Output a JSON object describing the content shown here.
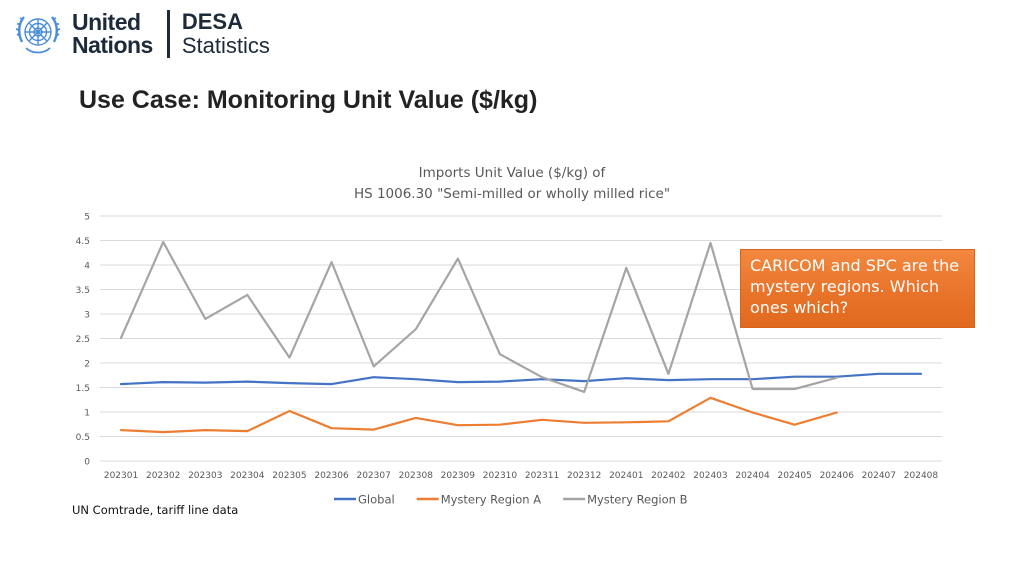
{
  "header": {
    "org_line1": "United",
    "org_line2": "Nations",
    "dept_line1": "DESA",
    "dept_line2": "Statistics"
  },
  "page": {
    "title": "Use Case: Monitoring Unit Value ($/kg)",
    "source_note": "UN Comtrade, tariff line data"
  },
  "callout": {
    "text": "CARICOM and SPC are the mystery regions. Which ones which?"
  },
  "colors": {
    "global": "#4472c4",
    "region_a": "#ed7d31",
    "region_b": "#a5a5a5",
    "callout": "#e8742a"
  },
  "chart_data": {
    "type": "line",
    "title": "Imports Unit Value ($/kg) of",
    "subtitle": "HS 1006.30 \"Semi-milled or wholly milled rice\"",
    "xlabel": "",
    "ylabel": "",
    "ylim": [
      0,
      5
    ],
    "yticks": [
      "0",
      "0.5",
      "1",
      "1.5",
      "2",
      "2.5",
      "3",
      "3.5",
      "4",
      "4.5",
      "5"
    ],
    "grid": true,
    "legend_position": "bottom",
    "categories": [
      "202301",
      "202302",
      "202303",
      "202304",
      "202305",
      "202306",
      "202307",
      "202308",
      "202309",
      "202310",
      "202311",
      "202312",
      "202401",
      "202402",
      "202403",
      "202404",
      "202405",
      "202406",
      "202407",
      "202408"
    ],
    "series": [
      {
        "name": "Global",
        "color": "#4472c4",
        "values": [
          1.57,
          1.61,
          1.6,
          1.62,
          1.59,
          1.57,
          1.71,
          1.67,
          1.61,
          1.62,
          1.67,
          1.63,
          1.69,
          1.65,
          1.67,
          1.67,
          1.72,
          1.72,
          1.78,
          1.78
        ]
      },
      {
        "name": "Mystery Region A",
        "color": "#ed7d31",
        "values": [
          0.63,
          0.59,
          0.63,
          0.61,
          1.02,
          0.67,
          0.64,
          0.88,
          0.73,
          0.74,
          0.84,
          0.78,
          0.79,
          0.81,
          1.29,
          0.99,
          0.74,
          0.99,
          null,
          null
        ]
      },
      {
        "name": "Mystery Region B",
        "color": "#a5a5a5",
        "values": [
          2.51,
          4.47,
          2.9,
          3.39,
          2.11,
          4.06,
          1.93,
          2.69,
          4.13,
          2.18,
          1.71,
          1.41,
          3.94,
          1.78,
          4.45,
          1.47,
          1.47,
          1.7,
          null,
          null
        ]
      }
    ]
  }
}
